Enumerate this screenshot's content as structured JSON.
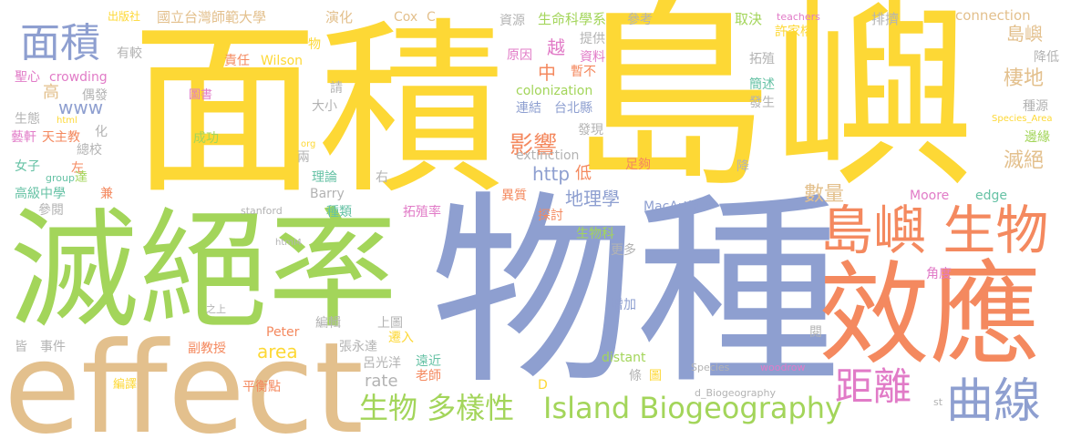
{
  "palette": {
    "yellow": "#fdd835",
    "green": "#a3d55a",
    "blue": "#8e9fd0",
    "orange": "#f4895f",
    "tan": "#e3c08d",
    "pink": "#e17bc7",
    "teal": "#66c2a5",
    "gray": "#b3b3b3"
  },
  "words": [
    {
      "text": "島嶼",
      "color": "yellow",
      "weight": "xl"
    },
    {
      "text": "面積",
      "color": "yellow",
      "weight": "xl"
    },
    {
      "text": "物種",
      "color": "blue",
      "weight": "xl"
    },
    {
      "text": "滅絕率",
      "color": "green",
      "weight": "xl"
    },
    {
      "text": "effect",
      "color": "tan",
      "weight": "xl"
    },
    {
      "text": "效應",
      "color": "orange",
      "weight": "xl"
    },
    {
      "text": "島嶼 生物",
      "color": "orange",
      "weight": "l"
    },
    {
      "text": "曲線",
      "color": "blue",
      "weight": "l"
    },
    {
      "text": "距離",
      "color": "pink",
      "weight": "l"
    },
    {
      "text": "面積",
      "color": "blue",
      "weight": "l"
    },
    {
      "text": "Island Biogeography",
      "color": "green",
      "weight": "m"
    },
    {
      "text": "生物 多樣性",
      "color": "green",
      "weight": "m"
    },
    {
      "text": "影響",
      "color": "orange",
      "weight": "m"
    },
    {
      "text": "地理學",
      "color": "blue",
      "weight": "s"
    },
    {
      "text": "數量",
      "color": "tan",
      "weight": "s"
    },
    {
      "text": "棲地",
      "color": "tan",
      "weight": "s"
    },
    {
      "text": "滅絕",
      "color": "tan",
      "weight": "s"
    },
    {
      "text": "島嶼",
      "color": "tan",
      "weight": "s"
    },
    {
      "text": "http",
      "color": "blue",
      "weight": "s"
    },
    {
      "text": "area",
      "color": "yellow",
      "weight": "s"
    },
    {
      "text": "rate",
      "color": "gray",
      "weight": "s"
    },
    {
      "text": "www",
      "color": "blue",
      "weight": "s"
    },
    {
      "text": "中",
      "color": "orange",
      "weight": "s"
    },
    {
      "text": "越",
      "color": "pink",
      "weight": "s"
    },
    {
      "text": "高",
      "color": "tan",
      "weight": "s"
    },
    {
      "text": "低",
      "color": "orange",
      "weight": "s"
    },
    {
      "text": "國立台灣師範大學",
      "color": "tan",
      "weight": "xs"
    },
    {
      "text": "生命科學系",
      "color": "green",
      "weight": "xs"
    },
    {
      "text": "演化",
      "color": "tan",
      "weight": "xs"
    },
    {
      "text": "Cox",
      "color": "tan",
      "weight": "xs"
    },
    {
      "text": "C",
      "color": "tan",
      "weight": "xs"
    },
    {
      "text": "資源",
      "color": "gray",
      "weight": "xs"
    },
    {
      "text": "參考",
      "color": "gray",
      "weight": "xs"
    },
    {
      "text": "取決",
      "color": "green",
      "weight": "xs"
    },
    {
      "text": "teachers",
      "color": "pink",
      "weight": "xxs"
    },
    {
      "text": "排擠",
      "color": "gray",
      "weight": "xs"
    },
    {
      "text": "connection",
      "color": "tan",
      "weight": "xs"
    },
    {
      "text": "出版社",
      "color": "yellow",
      "weight": "xxs"
    },
    {
      "text": "許家榕",
      "color": "yellow",
      "weight": "xs"
    },
    {
      "text": "降低",
      "color": "gray",
      "weight": "xs"
    },
    {
      "text": "有較",
      "color": "gray",
      "weight": "xs"
    },
    {
      "text": "物",
      "color": "yellow",
      "weight": "xs"
    },
    {
      "text": "原因",
      "color": "pink",
      "weight": "xs"
    },
    {
      "text": "提供",
      "color": "gray",
      "weight": "xs"
    },
    {
      "text": "資料",
      "color": "pink",
      "weight": "xs"
    },
    {
      "text": "暫不",
      "color": "orange",
      "weight": "xs"
    },
    {
      "text": "聖心",
      "color": "pink",
      "weight": "xs"
    },
    {
      "text": "crowding",
      "color": "pink",
      "weight": "xs"
    },
    {
      "text": "責任",
      "color": "orange",
      "weight": "xs"
    },
    {
      "text": "Wilson",
      "color": "yellow",
      "weight": "xs"
    },
    {
      "text": "拓殖",
      "color": "gray",
      "weight": "xs"
    },
    {
      "text": "偶發",
      "color": "gray",
      "weight": "xs"
    },
    {
      "text": "圖書",
      "color": "pink",
      "weight": "xs"
    },
    {
      "text": "請",
      "color": "gray",
      "weight": "xs"
    },
    {
      "text": "colonization",
      "color": "green",
      "weight": "xs"
    },
    {
      "text": "簡述",
      "color": "teal",
      "weight": "xs"
    },
    {
      "text": "種源",
      "color": "gray",
      "weight": "xs"
    },
    {
      "text": "大小",
      "color": "gray",
      "weight": "xs"
    },
    {
      "text": "連結",
      "color": "blue",
      "weight": "xs"
    },
    {
      "text": "台北縣",
      "color": "blue",
      "weight": "xs"
    },
    {
      "text": "發生",
      "color": "gray",
      "weight": "xs"
    },
    {
      "text": "Species_Area",
      "color": "yellow",
      "weight": "xxs"
    },
    {
      "text": "生態",
      "color": "gray",
      "weight": "xs"
    },
    {
      "text": "html",
      "color": "yellow",
      "weight": "xxs"
    },
    {
      "text": "化",
      "color": "gray",
      "weight": "xs"
    },
    {
      "text": "藝軒",
      "color": "pink",
      "weight": "xs"
    },
    {
      "text": "天主教",
      "color": "orange",
      "weight": "xs"
    },
    {
      "text": "成功",
      "color": "green",
      "weight": "xs"
    },
    {
      "text": "org",
      "color": "yellow",
      "weight": "xxs"
    },
    {
      "text": "發現",
      "color": "gray",
      "weight": "xs"
    },
    {
      "text": "邊緣",
      "color": "green",
      "weight": "xs"
    },
    {
      "text": "總校",
      "color": "gray",
      "weight": "xs"
    },
    {
      "text": "左",
      "color": "orange",
      "weight": "xs"
    },
    {
      "text": "女子",
      "color": "teal",
      "weight": "xs"
    },
    {
      "text": "extinction",
      "color": "gray",
      "weight": "xs"
    },
    {
      "text": "兩",
      "color": "gray",
      "weight": "xs"
    },
    {
      "text": "足夠",
      "color": "orange",
      "weight": "xs"
    },
    {
      "text": "降",
      "color": "gray",
      "weight": "xs"
    },
    {
      "text": "group",
      "color": "teal",
      "weight": "xxs"
    },
    {
      "text": "達",
      "color": "green",
      "weight": "xs"
    },
    {
      "text": "理論",
      "color": "teal",
      "weight": "xs"
    },
    {
      "text": "右",
      "color": "gray",
      "weight": "xs"
    },
    {
      "text": "Barry",
      "color": "gray",
      "weight": "xs"
    },
    {
      "text": "高級中學",
      "color": "teal",
      "weight": "xs"
    },
    {
      "text": "異質",
      "color": "orange",
      "weight": "xs"
    },
    {
      "text": "Moore",
      "color": "pink",
      "weight": "xs"
    },
    {
      "text": "edge",
      "color": "teal",
      "weight": "xs"
    },
    {
      "text": "兼",
      "color": "orange",
      "weight": "xs"
    },
    {
      "text": "參閱",
      "color": "gray",
      "weight": "xs"
    },
    {
      "text": "stanford",
      "color": "gray",
      "weight": "xxs"
    },
    {
      "text": "種類",
      "color": "teal",
      "weight": "xs"
    },
    {
      "text": "拓殖率",
      "color": "pink",
      "weight": "xs"
    },
    {
      "text": "探討",
      "color": "orange",
      "weight": "xs"
    },
    {
      "text": "MacArthur",
      "color": "blue",
      "weight": "xs"
    },
    {
      "text": "生物科",
      "color": "green",
      "weight": "xs"
    },
    {
      "text": "html4",
      "color": "gray",
      "weight": "xxs"
    },
    {
      "text": "更多",
      "color": "gray",
      "weight": "xs"
    },
    {
      "text": "角度",
      "color": "pink",
      "weight": "xs"
    },
    {
      "text": "之上",
      "color": "gray",
      "weight": "xxs"
    },
    {
      "text": "增加",
      "color": "blue",
      "weight": "xs"
    },
    {
      "text": "編輯",
      "color": "gray",
      "weight": "xs"
    },
    {
      "text": "上圖",
      "color": "gray",
      "weight": "xs"
    },
    {
      "text": "Peter",
      "color": "orange",
      "weight": "xs"
    },
    {
      "text": "皆",
      "color": "gray",
      "weight": "xs"
    },
    {
      "text": "事件",
      "color": "gray",
      "weight": "xs"
    },
    {
      "text": "副教授",
      "color": "orange",
      "weight": "xs"
    },
    {
      "text": "張永達",
      "color": "gray",
      "weight": "xs"
    },
    {
      "text": "遷入",
      "color": "yellow",
      "weight": "xs"
    },
    {
      "text": "distant",
      "color": "green",
      "weight": "xs"
    },
    {
      "text": "閱",
      "color": "gray",
      "weight": "xs"
    },
    {
      "text": "呂光洋",
      "color": "gray",
      "weight": "xs"
    },
    {
      "text": "遠近",
      "color": "teal",
      "weight": "xs"
    },
    {
      "text": "Species",
      "color": "gray",
      "weight": "xxs"
    },
    {
      "text": "woodrow",
      "color": "pink",
      "weight": "xxs"
    },
    {
      "text": "老師",
      "color": "orange",
      "weight": "xs"
    },
    {
      "text": "條",
      "color": "gray",
      "weight": "xs"
    },
    {
      "text": "圖",
      "color": "yellow",
      "weight": "xs"
    },
    {
      "text": "D",
      "color": "yellow",
      "weight": "xs"
    },
    {
      "text": "編譯",
      "color": "yellow",
      "weight": "xs"
    },
    {
      "text": "平衡點",
      "color": "orange",
      "weight": "xs"
    },
    {
      "text": "d_Biogeography",
      "color": "gray",
      "weight": "xxs"
    },
    {
      "text": "st",
      "color": "gray",
      "weight": "xxs"
    }
  ]
}
